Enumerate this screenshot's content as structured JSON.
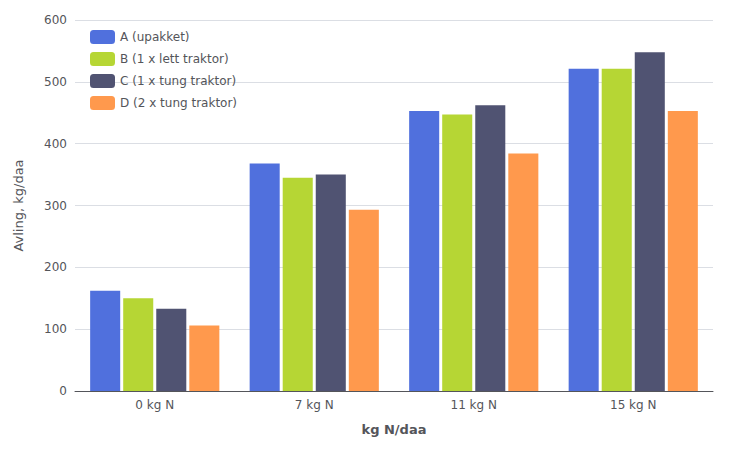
{
  "chart_data": {
    "type": "bar",
    "categories": [
      "0 kg N",
      "7 kg N",
      "11 kg N",
      "15 kg N"
    ],
    "series": [
      {
        "name": "A (upakket)",
        "values": [
          162,
          368,
          453,
          521
        ]
      },
      {
        "name": "B (1 x lett traktor)",
        "values": [
          150,
          345,
          447,
          521
        ]
      },
      {
        "name": "C (1 x tung traktor)",
        "values": [
          133,
          350,
          462,
          548
        ]
      },
      {
        "name": "D (2 x tung traktor)",
        "values": [
          106,
          293,
          384,
          453
        ]
      }
    ],
    "xlabel": "kg N/daa",
    "ylabel": "Avling, kg/daa",
    "ylim": [
      0,
      600
    ],
    "yticks": [
      0,
      100,
      200,
      300,
      400,
      500,
      600
    ],
    "grid": true,
    "legend": "upper left"
  }
}
